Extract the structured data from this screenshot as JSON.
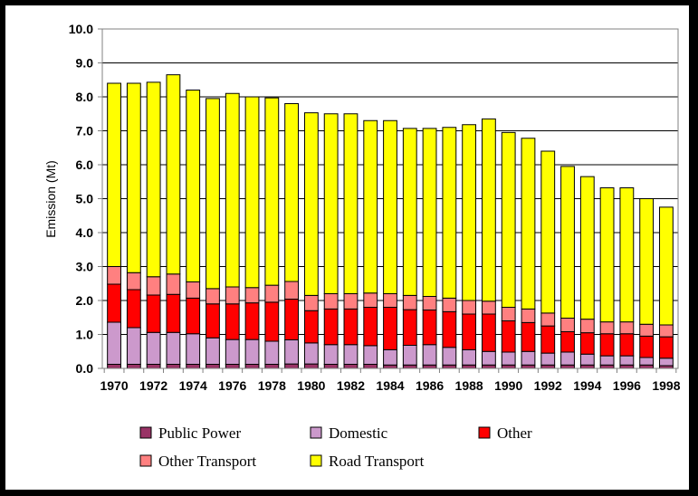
{
  "chart_data": {
    "type": "bar",
    "stacked": true,
    "title": "",
    "xlabel": "",
    "ylabel": "Emission (Mt)",
    "ylim": [
      0,
      10
    ],
    "yticks": [
      "0.0",
      "1.0",
      "2.0",
      "3.0",
      "4.0",
      "5.0",
      "6.0",
      "7.0",
      "8.0",
      "9.0",
      "10.0"
    ],
    "xtick_labels": [
      "1970",
      "1972",
      "1974",
      "1976",
      "1978",
      "1980",
      "1982",
      "1984",
      "1986",
      "1988",
      "1990",
      "1992",
      "1994",
      "1996",
      "1998"
    ],
    "grid": "horizontal",
    "legend_position": "bottom",
    "categories": [
      "1970",
      "1971",
      "1972",
      "1973",
      "1974",
      "1975",
      "1976",
      "1977",
      "1978",
      "1979",
      "1980",
      "1981",
      "1982",
      "1983",
      "1984",
      "1985",
      "1986",
      "1987",
      "1988",
      "1989",
      "1990",
      "1991",
      "1992",
      "1993",
      "1994",
      "1995",
      "1996",
      "1997",
      "1998"
    ],
    "series": [
      {
        "name": "Public Power",
        "color": "#993366",
        "values": [
          0.12,
          0.12,
          0.12,
          0.12,
          0.12,
          0.12,
          0.12,
          0.12,
          0.12,
          0.13,
          0.13,
          0.12,
          0.12,
          0.12,
          0.1,
          0.1,
          0.1,
          0.1,
          0.1,
          0.1,
          0.1,
          0.1,
          0.1,
          0.1,
          0.1,
          0.1,
          0.1,
          0.1,
          0.08
        ]
      },
      {
        "name": "Domestic",
        "color": "#CC99CC",
        "values": [
          1.24,
          1.08,
          0.94,
          0.94,
          0.9,
          0.78,
          0.73,
          0.73,
          0.68,
          0.71,
          0.62,
          0.58,
          0.58,
          0.55,
          0.45,
          0.58,
          0.6,
          0.52,
          0.45,
          0.4,
          0.38,
          0.4,
          0.35,
          0.38,
          0.32,
          0.27,
          0.27,
          0.22,
          0.22
        ]
      },
      {
        "name": "Other",
        "color": "#FF0000",
        "values": [
          1.12,
          1.12,
          1.1,
          1.12,
          1.05,
          1.0,
          1.05,
          1.08,
          1.15,
          1.2,
          0.95,
          1.05,
          1.05,
          1.13,
          1.25,
          1.05,
          1.02,
          1.05,
          1.05,
          1.1,
          0.92,
          0.85,
          0.8,
          0.6,
          0.63,
          0.65,
          0.65,
          0.63,
          0.63
        ]
      },
      {
        "name": "Other Transport",
        "color": "#FF8080",
        "values": [
          0.52,
          0.5,
          0.54,
          0.6,
          0.48,
          0.45,
          0.5,
          0.45,
          0.5,
          0.52,
          0.45,
          0.45,
          0.45,
          0.42,
          0.4,
          0.42,
          0.4,
          0.4,
          0.4,
          0.38,
          0.4,
          0.4,
          0.38,
          0.4,
          0.4,
          0.35,
          0.35,
          0.35,
          0.35
        ]
      },
      {
        "name": "Road Transport",
        "color": "#FFFF00",
        "values": [
          5.4,
          5.58,
          5.73,
          5.87,
          5.65,
          5.6,
          5.7,
          5.62,
          5.52,
          5.24,
          5.38,
          5.3,
          5.3,
          5.08,
          5.1,
          4.92,
          4.95,
          5.03,
          5.18,
          5.37,
          5.15,
          5.03,
          4.77,
          4.47,
          4.2,
          3.95,
          3.95,
          3.7,
          3.47
        ]
      }
    ]
  }
}
